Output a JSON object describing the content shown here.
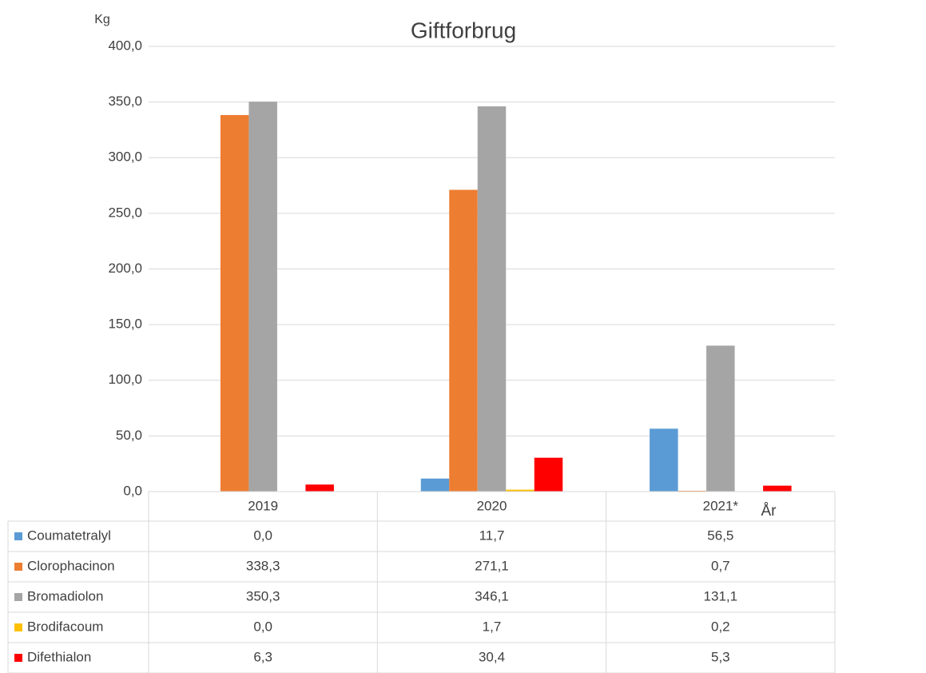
{
  "chart_data": {
    "type": "bar",
    "title": "Giftforbrug",
    "y_label": "Kg",
    "x_label": "År",
    "categories": [
      "2019",
      "2020",
      "2021*"
    ],
    "series": [
      {
        "name": "Coumatetralyl",
        "color": "#5b9bd5",
        "values": [
          0.0,
          11.7,
          56.5
        ],
        "value_labels": [
          "0,0",
          "11,7",
          "56,5"
        ]
      },
      {
        "name": "Clorophacinon",
        "color": "#ed7d31",
        "values": [
          338.3,
          271.1,
          0.7
        ],
        "value_labels": [
          "338,3",
          "271,1",
          "0,7"
        ]
      },
      {
        "name": "Bromadiolon",
        "color": "#a5a5a5",
        "values": [
          350.3,
          346.1,
          131.1
        ],
        "value_labels": [
          "350,3",
          "346,1",
          "131,1"
        ]
      },
      {
        "name": "Brodifacoum",
        "color": "#ffc000",
        "values": [
          0.0,
          1.7,
          0.2
        ],
        "value_labels": [
          "0,0",
          "1,7",
          "0,2"
        ]
      },
      {
        "name": "Difethialon",
        "color": "#ff0000",
        "values": [
          6.3,
          30.4,
          5.3
        ],
        "value_labels": [
          "6,3",
          "30,4",
          "5,3"
        ]
      }
    ],
    "ylim": [
      0,
      400
    ],
    "yticks": [
      {
        "value": 0,
        "label": "0,0"
      },
      {
        "value": 50,
        "label": "50,0"
      },
      {
        "value": 100,
        "label": "100,0"
      },
      {
        "value": 150,
        "label": "150,0"
      },
      {
        "value": 200,
        "label": "200,0"
      },
      {
        "value": 250,
        "label": "250,0"
      },
      {
        "value": 300,
        "label": "300,0"
      },
      {
        "value": 350,
        "label": "350,0"
      },
      {
        "value": 400,
        "label": "400,0"
      }
    ],
    "grid": true
  }
}
